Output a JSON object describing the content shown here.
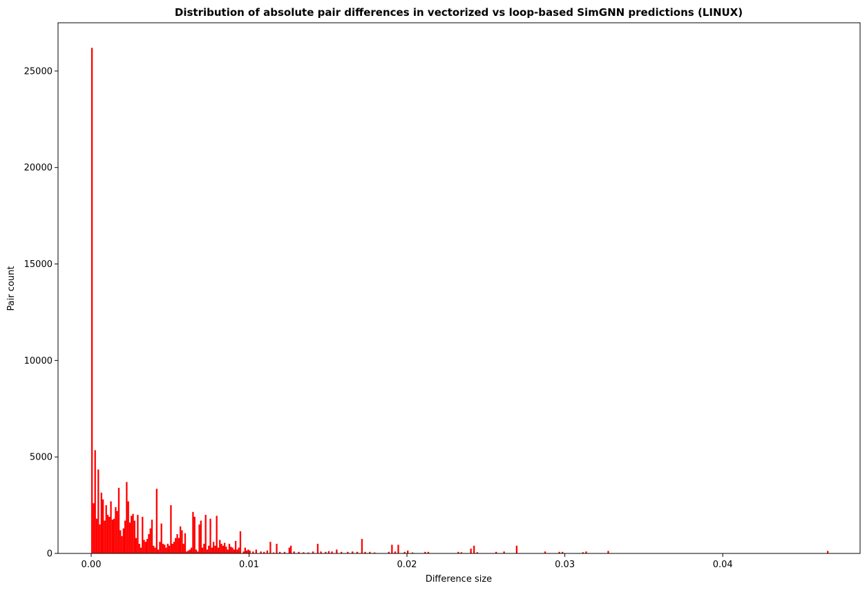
{
  "chart_data": {
    "type": "bar",
    "title": "Distribution of absolute pair differences in vectorized vs loop-based SimGNN predictions (LINUX)",
    "xlabel": "Difference size",
    "ylabel": "Pair count",
    "xlim": [
      -0.0021,
      0.0487
    ],
    "ylim": [
      0,
      27500
    ],
    "xticks": [
      0.0,
      0.01,
      0.02,
      0.03,
      0.04
    ],
    "xtick_labels": [
      "0.00",
      "0.01",
      "0.02",
      "0.03",
      "0.04"
    ],
    "yticks": [
      0,
      5000,
      10000,
      15000,
      20000,
      25000
    ],
    "ytick_labels": [
      "0",
      "5000",
      "10000",
      "15000",
      "20000",
      "25000"
    ],
    "bin_width": 0.0001,
    "color": "#ff0000",
    "grid": false,
    "bins": [
      [
        0.0,
        26200
      ],
      [
        0.0001,
        2600
      ],
      [
        0.0002,
        5350
      ],
      [
        0.0003,
        1800
      ],
      [
        0.0004,
        4350
      ],
      [
        0.0005,
        1500
      ],
      [
        0.0006,
        3150
      ],
      [
        0.0007,
        2800
      ],
      [
        0.0008,
        1700
      ],
      [
        0.0009,
        2500
      ],
      [
        0.001,
        2000
      ],
      [
        0.0011,
        1900
      ],
      [
        0.0012,
        2700
      ],
      [
        0.0013,
        1750
      ],
      [
        0.0014,
        1800
      ],
      [
        0.0015,
        2400
      ],
      [
        0.0016,
        2200
      ],
      [
        0.0017,
        3400
      ],
      [
        0.0018,
        1200
      ],
      [
        0.0019,
        900
      ],
      [
        0.002,
        1300
      ],
      [
        0.0021,
        1700
      ],
      [
        0.0022,
        3700
      ],
      [
        0.0023,
        2700
      ],
      [
        0.0024,
        1600
      ],
      [
        0.0025,
        1950
      ],
      [
        0.0026,
        2050
      ],
      [
        0.0027,
        1700
      ],
      [
        0.0028,
        800
      ],
      [
        0.0029,
        2000
      ],
      [
        0.003,
        500
      ],
      [
        0.0031,
        300
      ],
      [
        0.0032,
        1900
      ],
      [
        0.0033,
        700
      ],
      [
        0.0034,
        600
      ],
      [
        0.0035,
        750
      ],
      [
        0.0036,
        1000
      ],
      [
        0.0037,
        1300
      ],
      [
        0.0038,
        1750
      ],
      [
        0.0039,
        400
      ],
      [
        0.004,
        300
      ],
      [
        0.0041,
        3350
      ],
      [
        0.0042,
        200
      ],
      [
        0.0043,
        600
      ],
      [
        0.0044,
        1550
      ],
      [
        0.0045,
        500
      ],
      [
        0.0046,
        450
      ],
      [
        0.0047,
        300
      ],
      [
        0.0048,
        500
      ],
      [
        0.0049,
        400
      ],
      [
        0.005,
        2500
      ],
      [
        0.0051,
        500
      ],
      [
        0.0052,
        600
      ],
      [
        0.0053,
        800
      ],
      [
        0.0054,
        1000
      ],
      [
        0.0055,
        800
      ],
      [
        0.0056,
        1400
      ],
      [
        0.0057,
        1200
      ],
      [
        0.0058,
        500
      ],
      [
        0.0059,
        1050
      ],
      [
        0.006,
        100
      ],
      [
        0.0061,
        150
      ],
      [
        0.0062,
        200
      ],
      [
        0.0063,
        300
      ],
      [
        0.0064,
        2150
      ],
      [
        0.0065,
        1900
      ],
      [
        0.0066,
        200
      ],
      [
        0.0067,
        100
      ],
      [
        0.0068,
        1500
      ],
      [
        0.0069,
        1700
      ],
      [
        0.007,
        300
      ],
      [
        0.0071,
        500
      ],
      [
        0.0072,
        2000
      ],
      [
        0.0073,
        200
      ],
      [
        0.0074,
        400
      ],
      [
        0.0075,
        1800
      ],
      [
        0.0076,
        300
      ],
      [
        0.0077,
        600
      ],
      [
        0.0078,
        400
      ],
      [
        0.0079,
        1950
      ],
      [
        0.008,
        300
      ],
      [
        0.0081,
        700
      ],
      [
        0.0082,
        500
      ],
      [
        0.0083,
        400
      ],
      [
        0.0084,
        550
      ],
      [
        0.0085,
        350
      ],
      [
        0.0086,
        200
      ],
      [
        0.0087,
        500
      ],
      [
        0.0088,
        350
      ],
      [
        0.0089,
        300
      ],
      [
        0.009,
        200
      ],
      [
        0.0091,
        650
      ],
      [
        0.0092,
        200
      ],
      [
        0.0093,
        300
      ],
      [
        0.0094,
        1150
      ],
      [
        0.0096,
        100
      ],
      [
        0.0097,
        300
      ],
      [
        0.0098,
        150
      ],
      [
        0.0099,
        200
      ],
      [
        0.01,
        150
      ],
      [
        0.0102,
        100
      ],
      [
        0.0104,
        200
      ],
      [
        0.0107,
        100
      ],
      [
        0.0109,
        80
      ],
      [
        0.0111,
        150
      ],
      [
        0.0113,
        600
      ],
      [
        0.0115,
        50
      ],
      [
        0.0117,
        500
      ],
      [
        0.0119,
        80
      ],
      [
        0.0122,
        80
      ],
      [
        0.0125,
        300
      ],
      [
        0.0126,
        400
      ],
      [
        0.0128,
        100
      ],
      [
        0.0131,
        80
      ],
      [
        0.0134,
        60
      ],
      [
        0.0137,
        50
      ],
      [
        0.014,
        100
      ],
      [
        0.0143,
        500
      ],
      [
        0.0145,
        100
      ],
      [
        0.0148,
        80
      ],
      [
        0.015,
        120
      ],
      [
        0.0152,
        100
      ],
      [
        0.0155,
        200
      ],
      [
        0.0158,
        80
      ],
      [
        0.0162,
        80
      ],
      [
        0.0165,
        100
      ],
      [
        0.0168,
        80
      ],
      [
        0.0171,
        750
      ],
      [
        0.0173,
        80
      ],
      [
        0.0176,
        80
      ],
      [
        0.0179,
        50
      ],
      [
        0.0188,
        80
      ],
      [
        0.019,
        450
      ],
      [
        0.0192,
        100
      ],
      [
        0.0194,
        450
      ],
      [
        0.0198,
        80
      ],
      [
        0.02,
        150
      ],
      [
        0.0203,
        50
      ],
      [
        0.0211,
        80
      ],
      [
        0.0213,
        80
      ],
      [
        0.0232,
        80
      ],
      [
        0.0234,
        60
      ],
      [
        0.024,
        250
      ],
      [
        0.0242,
        400
      ],
      [
        0.0244,
        60
      ],
      [
        0.0256,
        80
      ],
      [
        0.0261,
        100
      ],
      [
        0.0269,
        400
      ],
      [
        0.0287,
        100
      ],
      [
        0.0296,
        80
      ],
      [
        0.0298,
        80
      ],
      [
        0.0311,
        60
      ],
      [
        0.0313,
        100
      ],
      [
        0.0327,
        130
      ],
      [
        0.0466,
        130
      ]
    ]
  }
}
